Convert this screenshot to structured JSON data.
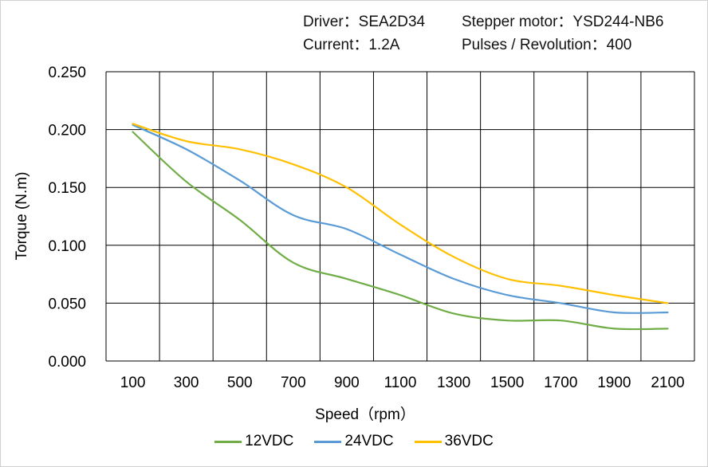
{
  "header": {
    "driver": "Driver：SEA2D34",
    "motor": "Stepper motor：YSD244-NB6",
    "current": "Current：1.2A",
    "pulses": "Pulses / Revolution：400"
  },
  "chart_data": {
    "type": "line",
    "xlabel": "Speed（rpm）",
    "ylabel": "Torque (N.m)",
    "ylim": [
      0,
      0.25
    ],
    "y_ticks": [
      "0.000",
      "0.050",
      "0.100",
      "0.150",
      "0.200",
      "0.250"
    ],
    "x_ticks": [
      "100",
      "300",
      "500",
      "700",
      "900",
      "1100",
      "1300",
      "1500",
      "1700",
      "1900",
      "2100"
    ],
    "x": [
      100,
      300,
      500,
      700,
      900,
      1100,
      1300,
      1500,
      1700,
      1900,
      2100
    ],
    "grid": true,
    "legend_position": "bottom",
    "series": [
      {
        "name": "12VDC",
        "color": "#70ad47",
        "values": [
          0.198,
          0.155,
          0.122,
          0.085,
          0.071,
          0.057,
          0.041,
          0.035,
          0.035,
          0.028,
          0.028
        ]
      },
      {
        "name": "24VDC",
        "color": "#5b9bd5",
        "values": [
          0.204,
          0.183,
          0.156,
          0.126,
          0.114,
          0.092,
          0.071,
          0.057,
          0.05,
          0.042,
          0.042
        ]
      },
      {
        "name": "36VDC",
        "color": "#ffc000",
        "values": [
          0.205,
          0.19,
          0.183,
          0.17,
          0.15,
          0.118,
          0.09,
          0.071,
          0.065,
          0.057,
          0.05
        ]
      }
    ]
  }
}
